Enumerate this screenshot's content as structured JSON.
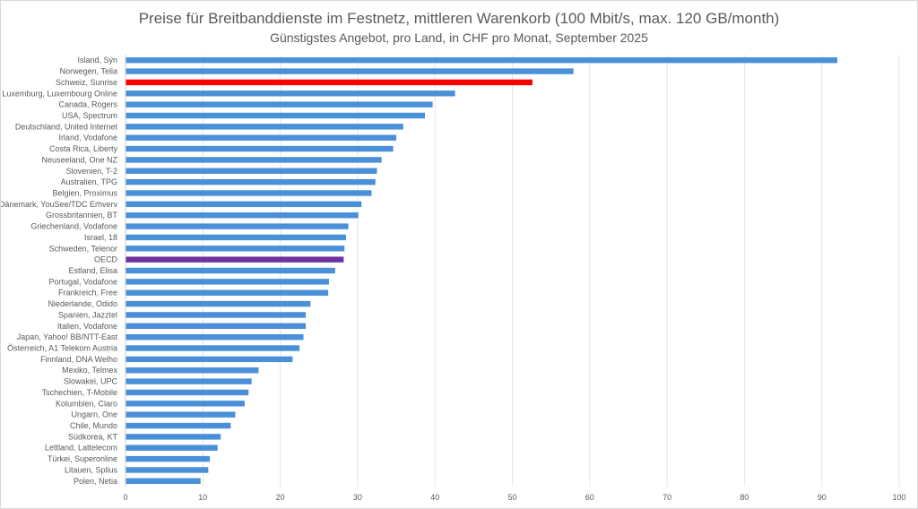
{
  "chart_data": {
    "type": "bar",
    "orientation": "horizontal",
    "title": "Preise für Breitbanddienste im Festnetz, mittleren Warenkorb (100 Mbit/s, max. 120 GB/month)",
    "subtitle": "Günstigstes Angebot, pro Land, in CHF pro Monat, September 2025",
    "xlim": [
      0,
      100
    ],
    "xticks": [
      0,
      10,
      20,
      30,
      40,
      50,
      60,
      70,
      80,
      90,
      100
    ],
    "grid": true,
    "categories": [
      "Island, Sýn",
      "Norwegen, Telia",
      "Schweiz, Sunrise",
      "Luxemburg,  Luxembourg Online",
      "Canada, Rogers",
      "USA, Spectrum",
      "Deutschland, United Internet",
      "Irland, Vodafone",
      "Costa Rica, Liberty",
      "Neuseeland, One NZ",
      "Slovenien, T-2",
      "Australien, TPG",
      "Belgien, Proximus",
      "Dänemark, YouSee/TDC Erhverv",
      "Grossbritannien, BT",
      "Griechenland, Vodafone",
      "Israel, 18",
      "Schweden, Telenor",
      "OECD",
      "Estland, Elisa",
      "Portugal, Vodafone",
      "Frankreich, Free",
      "Niederlande, Odido",
      "Spanien, Jazztel",
      "Italien, Vodafone",
      "Japan, Yahoo! BB/NTT-East",
      "Österreich, A1 Telekom Austria",
      "Finnland, DNA Welho",
      "Mexiko, Telmex",
      "Slowakei, UPC",
      "Tschechien, T-Mobile",
      "Kolumbien, Claro",
      "Ungarn, One",
      "Chile, Mundo",
      "Südkorea, KT",
      "Lettland, Lattelecom",
      "Türkei, Superonline",
      "Litauen, Splius",
      "Polen, Netia"
    ],
    "values": [
      92.0,
      57.9,
      52.6,
      42.6,
      39.7,
      38.7,
      35.9,
      35.0,
      34.6,
      33.1,
      32.5,
      32.3,
      31.8,
      30.5,
      30.1,
      28.8,
      28.5,
      28.3,
      28.2,
      27.1,
      26.3,
      26.2,
      23.9,
      23.3,
      23.3,
      23.0,
      22.5,
      21.6,
      17.2,
      16.3,
      15.9,
      15.4,
      14.2,
      13.6,
      12.3,
      11.9,
      10.9,
      10.7,
      9.7
    ],
    "colors": {
      "default": "#4a90d9",
      "highlight_switzerland": "#ff0000",
      "highlight_oecd": "#7030a0",
      "grid": "#e6e6e6",
      "text": "#595959"
    },
    "highlights": {
      "Schweiz, Sunrise": "highlight_switzerland",
      "OECD": "highlight_oecd"
    }
  }
}
